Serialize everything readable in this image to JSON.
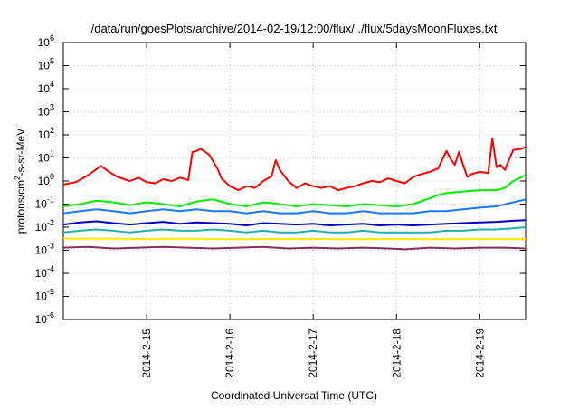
{
  "chart_data": {
    "type": "line",
    "title": "/data/run/goesPlots/archive/2014-02-19/12:00/flux/../flux/5daysMoonFluxes.txt",
    "xlabel": "Coordinated Universal Time (UTC)",
    "ylabel_parts": [
      "protons/cm",
      "2",
      "-s-sr-MeV"
    ],
    "y_scale": "log",
    "ylim_exp": [
      -6,
      6
    ],
    "ytick_exponents": [
      -6,
      -5,
      -4,
      -3,
      -2,
      -1,
      0,
      1,
      2,
      3,
      4,
      5,
      6
    ],
    "ytick_base": "10",
    "xlim": [
      0,
      5.55
    ],
    "xticks": [
      {
        "x": 1,
        "label": "2014-2-15"
      },
      {
        "x": 2,
        "label": "2014-2-16"
      },
      {
        "x": 3,
        "label": "2014-2-17"
      },
      {
        "x": 4,
        "label": "2014-2-18"
      },
      {
        "x": 5,
        "label": "2014-2-19"
      }
    ],
    "grid": true,
    "series": [
      {
        "color": "#ff0000",
        "x": [
          0,
          0.15,
          0.3,
          0.45,
          0.55,
          0.65,
          0.8,
          0.9,
          1.0,
          1.1,
          1.2,
          1.3,
          1.4,
          1.5,
          1.55,
          1.6,
          1.65,
          1.75,
          1.85,
          1.9,
          2.0,
          2.1,
          2.2,
          2.3,
          2.4,
          2.5,
          2.55,
          2.6,
          2.7,
          2.8,
          2.9,
          3.0,
          3.1,
          3.2,
          3.3,
          3.4,
          3.5,
          3.6,
          3.7,
          3.8,
          3.9,
          4.0,
          4.1,
          4.2,
          4.3,
          4.4,
          4.5,
          4.6,
          4.65,
          4.7,
          4.75,
          4.8,
          4.85,
          4.9,
          5.0,
          5.1,
          5.15,
          5.2,
          5.25,
          5.3,
          5.4,
          5.5,
          5.55
        ],
        "values": [
          0.7,
          0.9,
          1.8,
          4.5,
          2.5,
          1.5,
          1.0,
          1.4,
          0.9,
          0.8,
          1.2,
          1.0,
          1.4,
          1.1,
          18,
          20,
          25,
          14,
          3.5,
          1.3,
          0.6,
          0.4,
          0.6,
          0.5,
          1.0,
          1.6,
          8,
          3,
          1.0,
          0.5,
          0.8,
          0.6,
          0.5,
          0.6,
          0.4,
          0.5,
          0.6,
          0.8,
          1.0,
          0.9,
          1.3,
          1.0,
          0.8,
          1.5,
          2.0,
          2.5,
          3.5,
          20,
          9,
          5,
          18,
          5,
          1.5,
          2.0,
          2.5,
          2.2,
          70,
          4,
          5,
          3,
          22,
          25,
          30
        ]
      },
      {
        "color": "#00ee00",
        "x": [
          0,
          0.2,
          0.4,
          0.6,
          0.8,
          1.0,
          1.2,
          1.4,
          1.6,
          1.8,
          2.0,
          2.2,
          2.4,
          2.6,
          2.8,
          3.0,
          3.2,
          3.4,
          3.6,
          3.8,
          4.0,
          4.2,
          4.4,
          4.5,
          4.6,
          4.8,
          5.0,
          5.2,
          5.3,
          5.4,
          5.55
        ],
        "values": [
          0.08,
          0.1,
          0.14,
          0.12,
          0.09,
          0.12,
          0.1,
          0.08,
          0.13,
          0.16,
          0.1,
          0.08,
          0.12,
          0.1,
          0.08,
          0.1,
          0.09,
          0.08,
          0.1,
          0.09,
          0.08,
          0.1,
          0.18,
          0.25,
          0.3,
          0.35,
          0.4,
          0.4,
          0.5,
          1.0,
          1.8
        ]
      },
      {
        "color": "#1e78ff",
        "x": [
          0,
          0.2,
          0.4,
          0.6,
          0.8,
          1.0,
          1.2,
          1.4,
          1.6,
          1.8,
          2.0,
          2.2,
          2.4,
          2.6,
          2.8,
          3.0,
          3.2,
          3.4,
          3.6,
          3.8,
          4.0,
          4.2,
          4.4,
          4.6,
          4.8,
          5.0,
          5.2,
          5.4,
          5.55
        ],
        "values": [
          0.04,
          0.05,
          0.06,
          0.05,
          0.04,
          0.05,
          0.06,
          0.05,
          0.06,
          0.05,
          0.05,
          0.04,
          0.05,
          0.04,
          0.04,
          0.05,
          0.04,
          0.04,
          0.05,
          0.04,
          0.04,
          0.04,
          0.05,
          0.05,
          0.06,
          0.07,
          0.08,
          0.12,
          0.16
        ]
      },
      {
        "color": "#0000cc",
        "x": [
          0,
          0.2,
          0.4,
          0.6,
          0.8,
          1.0,
          1.2,
          1.4,
          1.6,
          1.8,
          2.0,
          2.2,
          2.4,
          2.6,
          2.8,
          3.0,
          3.2,
          3.4,
          3.6,
          3.8,
          4.0,
          4.2,
          4.4,
          4.6,
          4.8,
          5.0,
          5.2,
          5.4,
          5.55
        ],
        "values": [
          0.013,
          0.016,
          0.018,
          0.015,
          0.013,
          0.015,
          0.017,
          0.014,
          0.016,
          0.015,
          0.014,
          0.012,
          0.015,
          0.014,
          0.013,
          0.014,
          0.012,
          0.013,
          0.014,
          0.012,
          0.013,
          0.012,
          0.013,
          0.014,
          0.015,
          0.016,
          0.017,
          0.019,
          0.02
        ]
      },
      {
        "color": "#20b2aa",
        "x": [
          0,
          0.2,
          0.4,
          0.6,
          0.8,
          1.0,
          1.2,
          1.4,
          1.6,
          1.8,
          2.0,
          2.2,
          2.4,
          2.6,
          2.8,
          3.0,
          3.2,
          3.4,
          3.6,
          3.8,
          4.0,
          4.2,
          4.4,
          4.6,
          4.8,
          5.0,
          5.2,
          5.4,
          5.55
        ],
        "values": [
          0.006,
          0.007,
          0.008,
          0.007,
          0.006,
          0.007,
          0.008,
          0.007,
          0.007,
          0.008,
          0.007,
          0.006,
          0.007,
          0.006,
          0.006,
          0.007,
          0.006,
          0.006,
          0.007,
          0.006,
          0.006,
          0.006,
          0.006,
          0.007,
          0.007,
          0.008,
          0.008,
          0.009,
          0.01
        ]
      },
      {
        "color": "#ffe800",
        "x": [
          0,
          0.5,
          1.0,
          1.5,
          2.0,
          2.5,
          3.0,
          3.5,
          4.0,
          4.5,
          5.0,
          5.55
        ],
        "values": [
          0.0032,
          0.0032,
          0.0031,
          0.0032,
          0.003,
          0.0031,
          0.0031,
          0.003,
          0.0031,
          0.003,
          0.0031,
          0.0031
        ]
      },
      {
        "color": "#8b2a5b",
        "x": [
          0,
          0.3,
          0.6,
          0.9,
          1.2,
          1.5,
          1.8,
          2.1,
          2.4,
          2.7,
          3.0,
          3.3,
          3.6,
          3.9,
          4.1,
          4.4,
          4.7,
          5.0,
          5.3,
          5.55
        ],
        "values": [
          0.0013,
          0.0014,
          0.0012,
          0.0013,
          0.0014,
          0.0013,
          0.0012,
          0.0013,
          0.0014,
          0.0012,
          0.0013,
          0.0012,
          0.0013,
          0.0012,
          0.0011,
          0.0013,
          0.0012,
          0.0013,
          0.0013,
          0.0012
        ]
      }
    ]
  }
}
